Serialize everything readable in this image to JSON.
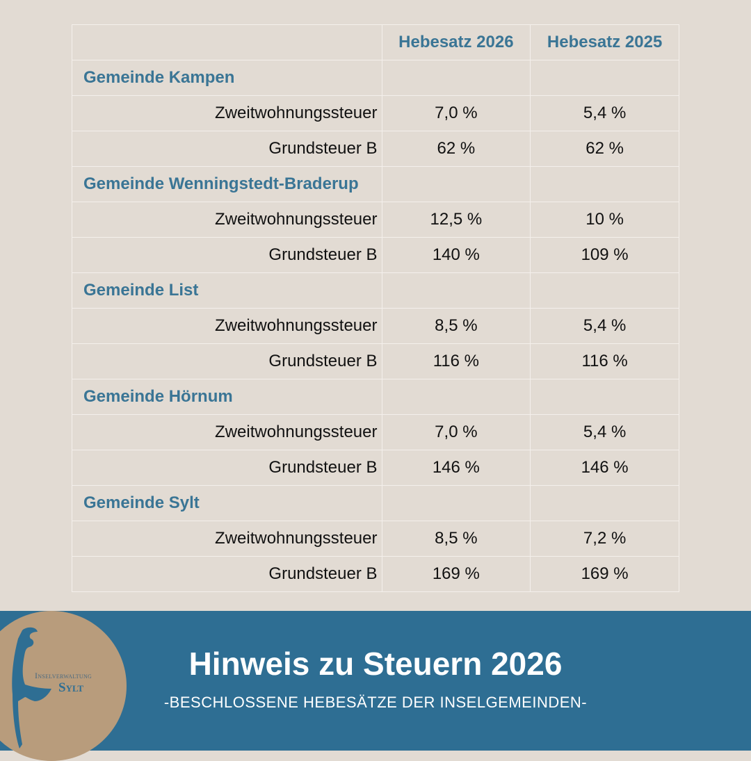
{
  "table": {
    "headers": [
      "",
      "Hebesatz 2026",
      "Hebesatz 2025"
    ],
    "groups": [
      {
        "name": "Gemeinde Kampen",
        "rows": [
          {
            "label": "Zweitwohnungssteuer",
            "v2026": "7,0 %",
            "v2025": "5,4 %"
          },
          {
            "label": "Grundsteuer B",
            "v2026": "62 %",
            "v2025": "62 %"
          }
        ]
      },
      {
        "name": "Gemeinde Wenningstedt-Braderup",
        "rows": [
          {
            "label": "Zweitwohnungssteuer",
            "v2026": "12,5 %",
            "v2025": "10 %"
          },
          {
            "label": "Grundsteuer B",
            "v2026": "140 %",
            "v2025": "109 %"
          }
        ]
      },
      {
        "name": "Gemeinde List",
        "rows": [
          {
            "label": "Zweitwohnungssteuer",
            "v2026": "8,5 %",
            "v2025": "5,4 %"
          },
          {
            "label": "Grundsteuer B",
            "v2026": "116 %",
            "v2025": "116 %"
          }
        ]
      },
      {
        "name": "Gemeinde Hörnum",
        "rows": [
          {
            "label": "Zweitwohnungssteuer",
            "v2026": "7,0 %",
            "v2025": "5,4 %"
          },
          {
            "label": "Grundsteuer B",
            "v2026": "146 %",
            "v2025": "146 %"
          }
        ]
      },
      {
        "name": "Gemeinde Sylt",
        "rows": [
          {
            "label": "Zweitwohnungssteuer",
            "v2026": "8,5 %",
            "v2025": "7,2 %"
          },
          {
            "label": "Grundsteuer B",
            "v2026": "169 %",
            "v2025": "169 %"
          }
        ]
      }
    ]
  },
  "banner": {
    "title": "Hinweis zu Steuern 2026",
    "subtitle": "-BESCHLOSSENE HEBESÄTZE DER INSELGEMEINDEN-"
  },
  "logo": {
    "line1": "Inselverwaltung",
    "line2": "Sylt"
  },
  "colors": {
    "accent": "#2e6e93",
    "heading": "#3a7595",
    "background": "#e2dbd3",
    "logo": "#b89c7c"
  }
}
